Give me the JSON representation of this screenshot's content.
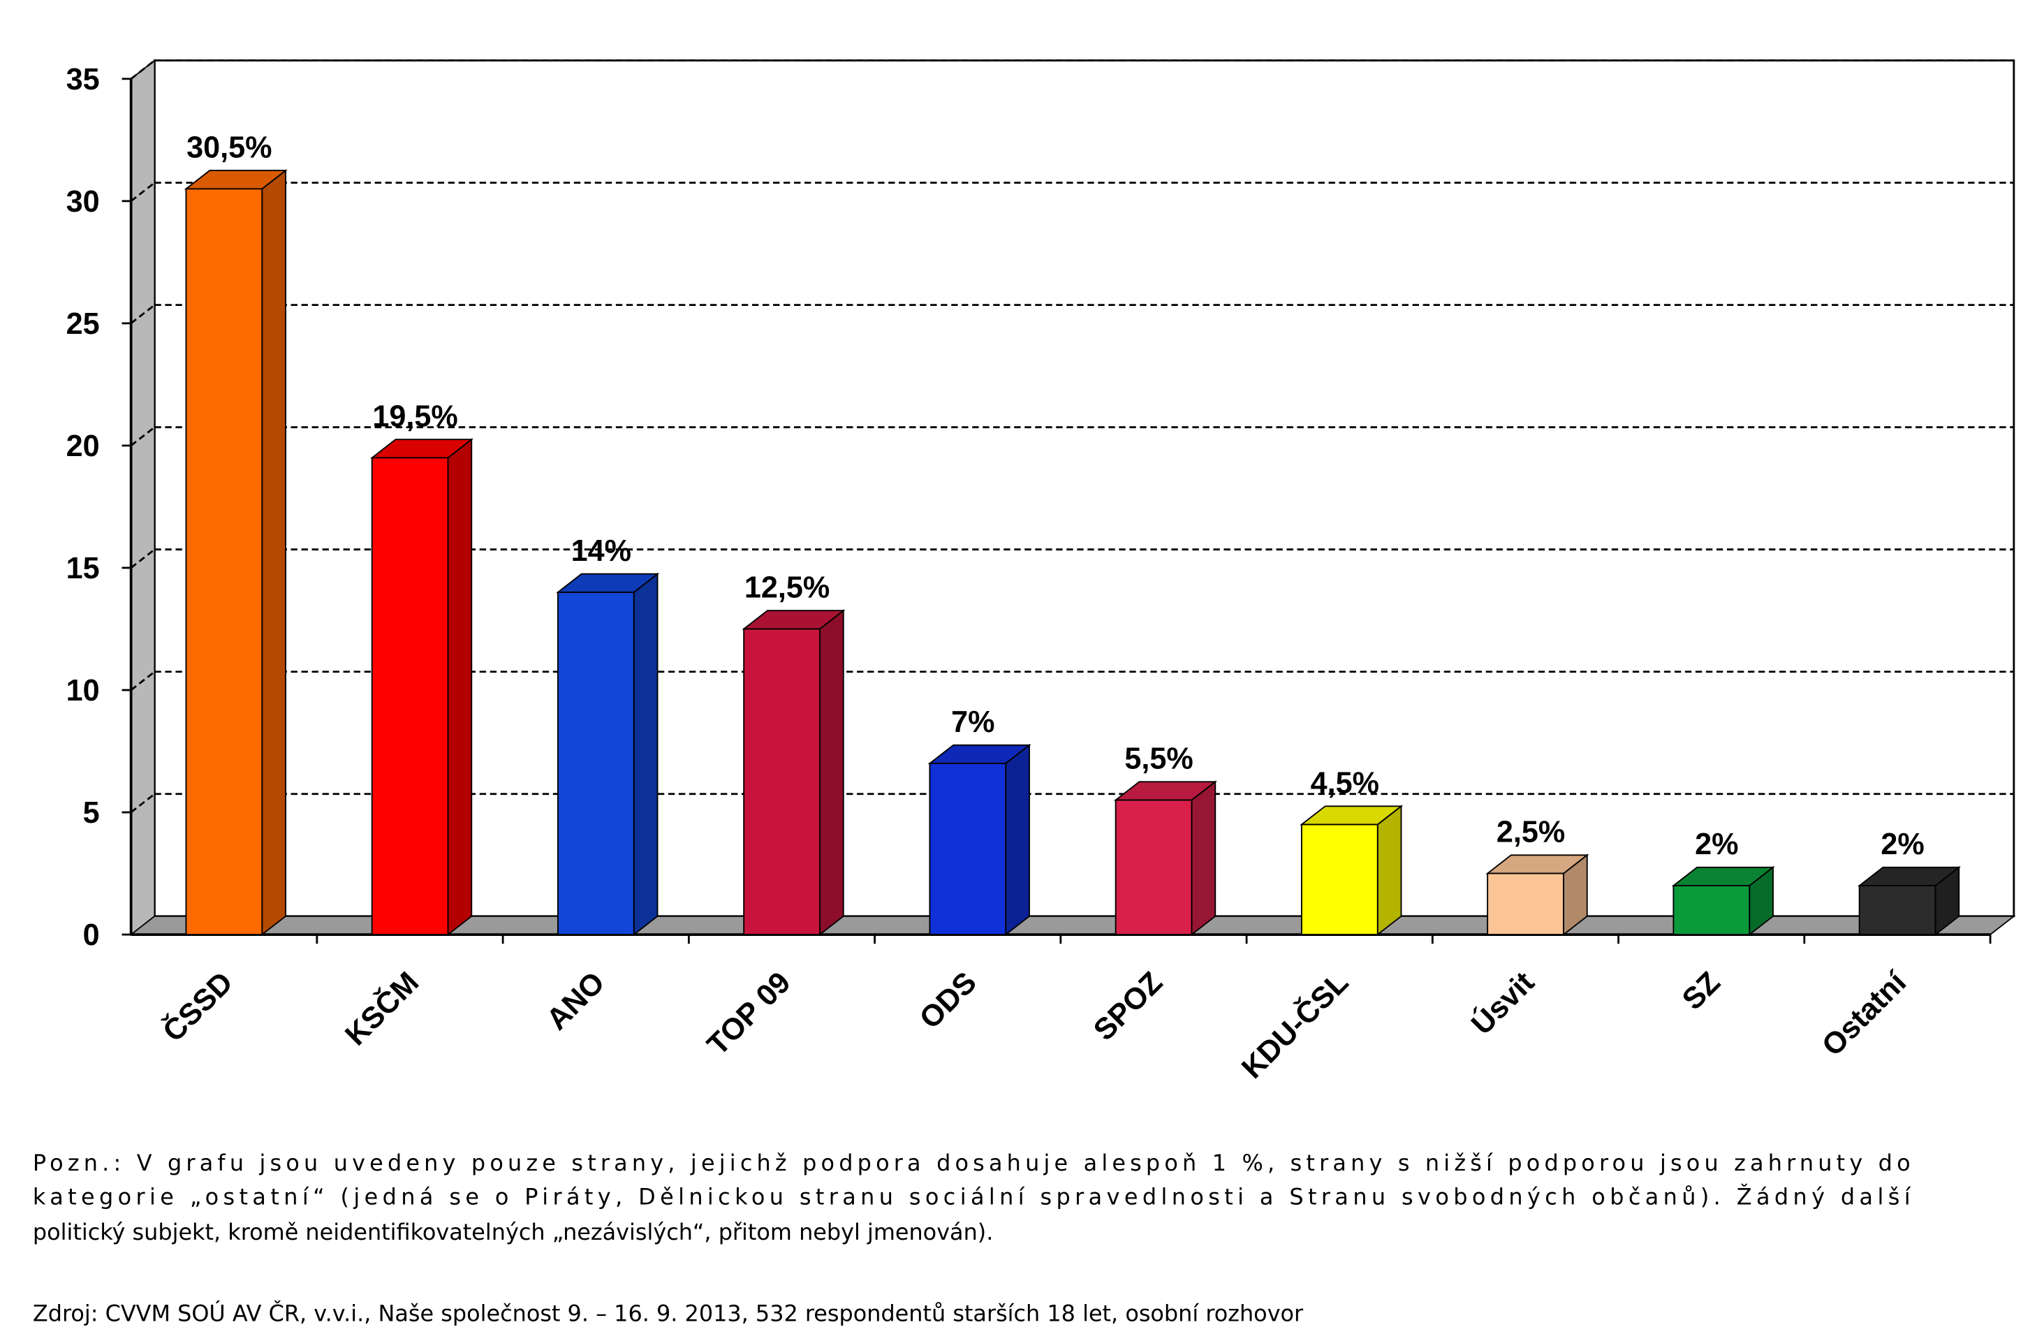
{
  "chart_data": {
    "type": "bar",
    "categories": [
      "ČSSD",
      "KSČM",
      "ANO",
      "TOP 09",
      "ODS",
      "SPOZ",
      "KDU-ČSL",
      "Úsvit",
      "SZ",
      "Ostatní"
    ],
    "values": [
      30.5,
      19.5,
      14,
      12.5,
      7,
      5.5,
      4.5,
      2.5,
      2,
      2
    ],
    "value_labels": [
      "30,5%",
      "19,5%",
      "14%",
      "12,5%",
      "7%",
      "5,5%",
      "4,5%",
      "2,5%",
      "2%",
      "2%"
    ],
    "colors": [
      "#ff6a00",
      "#ff0000",
      "#1146d8",
      "#c8143c",
      "#1030d8",
      "#d8204a",
      "#ffff00",
      "#fcc596",
      "#0a9a3a",
      "#2c2c2c"
    ],
    "ylim": [
      0,
      35
    ],
    "yticks": [
      0,
      5,
      10,
      15,
      20,
      25,
      30,
      35
    ],
    "grid": true
  },
  "note": [
    "Pozn.: V grafu jsou uvedeny pouze strany, jejichž podpora dosahuje alespoň 1 %, strany s nižší podporou jsou zahrnuty do",
    "kategorie „ostatní“ (jedná se o Piráty, Dělnickou stranu sociální spravedlnosti a Stranu svobodných občanů). Žádný další",
    "politický subjekt, kromě neidentifikovatelných „nezávislých“, přitom nebyl jmenován)."
  ],
  "source": "Zdroj: CVVM SOÚ AV ČR, v.v.i., Naše společnost 9. – 16. 9. 2013, 532 respondentů starších 18 let, osobní rozhovor"
}
